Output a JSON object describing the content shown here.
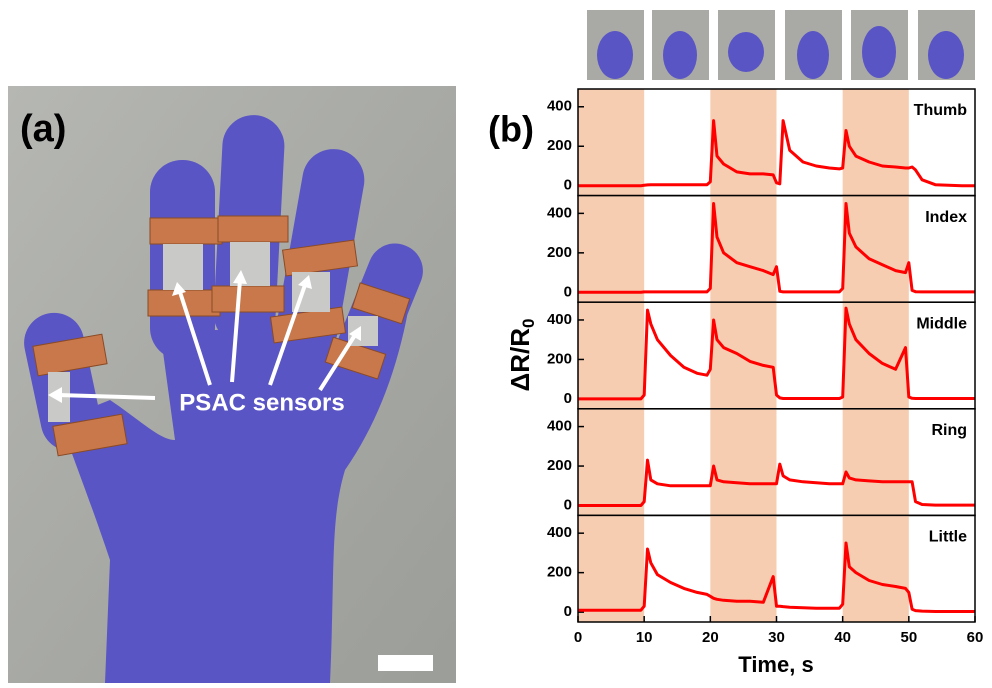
{
  "panel_a": {
    "label": "(a)",
    "annotation": "PSAC sensors"
  },
  "panel_b": {
    "label": "(b)"
  },
  "shared": {
    "xlabel": "Time, s",
    "ylabel": {
      "text": "ΔR/R",
      "subscript": "0"
    },
    "xlim": [
      0,
      60
    ],
    "xticks": [
      0,
      10,
      20,
      30,
      40,
      50,
      60
    ],
    "shaded": [
      [
        0,
        10
      ],
      [
        20,
        30
      ],
      [
        40,
        50
      ]
    ],
    "shade_color": "#f7cdb2"
  },
  "chart_data": [
    {
      "type": "line",
      "title": "Thumb",
      "x": [
        0,
        5,
        9.5,
        10,
        10.5,
        11,
        12,
        14,
        16,
        18,
        19.5,
        20,
        20.5,
        21,
        22,
        24,
        26,
        28,
        29.5,
        30,
        30.5,
        31,
        32,
        34,
        36,
        38,
        39.5,
        40,
        40.5,
        41,
        42,
        44,
        46,
        48,
        49.5,
        50,
        50.5,
        51,
        52,
        54,
        56,
        58,
        60
      ],
      "series": [
        {
          "color": "#ff0000",
          "values": [
            0,
            0,
            0,
            2,
            4,
            5,
            5,
            5,
            5,
            5,
            5,
            20,
            330,
            150,
            110,
            70,
            60,
            60,
            55,
            15,
            10,
            330,
            180,
            120,
            100,
            90,
            85,
            90,
            280,
            200,
            150,
            120,
            100,
            95,
            90,
            90,
            95,
            80,
            30,
            5,
            2,
            0,
            0
          ]
        }
      ],
      "ylim": [
        -50,
        490
      ],
      "yticks": [
        0,
        200,
        400
      ]
    },
    {
      "type": "line",
      "title": "Index",
      "x": [
        0,
        5,
        9.5,
        10,
        10.5,
        11,
        12,
        14,
        16,
        18,
        19.5,
        20,
        20.5,
        21,
        22,
        24,
        26,
        28,
        29.5,
        30,
        30.5,
        31,
        32,
        34,
        36,
        38,
        39.5,
        40,
        40.5,
        41,
        42,
        44,
        46,
        48,
        49.5,
        50,
        50.5,
        51,
        52,
        54,
        56,
        58,
        60
      ],
      "series": [
        {
          "color": "#ff0000",
          "values": [
            0,
            0,
            0,
            2,
            2,
            2,
            2,
            2,
            2,
            2,
            2,
            20,
            450,
            280,
            200,
            150,
            130,
            110,
            90,
            130,
            5,
            2,
            2,
            2,
            2,
            2,
            2,
            20,
            450,
            300,
            230,
            170,
            140,
            110,
            100,
            150,
            10,
            3,
            2,
            2,
            2,
            2,
            2
          ]
        }
      ],
      "ylim": [
        -50,
        490
      ],
      "yticks": [
        0,
        200,
        400
      ]
    },
    {
      "type": "line",
      "title": "Middle",
      "x": [
        0,
        5,
        9.5,
        10,
        10.5,
        11,
        12,
        14,
        16,
        18,
        19.5,
        20,
        20.5,
        21,
        22,
        24,
        26,
        28,
        29.5,
        30,
        30.5,
        31,
        32,
        34,
        36,
        38,
        39.5,
        40,
        40.5,
        41,
        42,
        44,
        46,
        48,
        49.5,
        50,
        50.5,
        51,
        52,
        54,
        56,
        58,
        60
      ],
      "series": [
        {
          "color": "#ff0000",
          "values": [
            0,
            0,
            0,
            20,
            450,
            380,
            300,
            220,
            160,
            130,
            120,
            150,
            400,
            300,
            260,
            230,
            190,
            170,
            160,
            20,
            5,
            2,
            2,
            2,
            2,
            2,
            2,
            10,
            460,
            380,
            300,
            230,
            180,
            150,
            260,
            10,
            3,
            2,
            2,
            2,
            2,
            2,
            2
          ]
        }
      ],
      "ylim": [
        -50,
        490
      ],
      "yticks": [
        0,
        200,
        400
      ]
    },
    {
      "type": "line",
      "title": "Ring",
      "x": [
        0,
        5,
        9.5,
        10,
        10.5,
        11,
        12,
        14,
        16,
        18,
        19.5,
        20,
        20.5,
        21,
        22,
        24,
        26,
        28,
        29.5,
        30,
        30.5,
        31,
        32,
        34,
        36,
        38,
        39.5,
        40,
        40.5,
        41,
        42,
        44,
        46,
        48,
        49.5,
        50,
        50.5,
        51,
        52,
        54,
        56,
        58,
        60
      ],
      "series": [
        {
          "color": "#ff0000",
          "values": [
            0,
            0,
            0,
            20,
            230,
            130,
            110,
            100,
            100,
            100,
            100,
            100,
            200,
            130,
            120,
            115,
            110,
            110,
            110,
            110,
            210,
            150,
            130,
            120,
            115,
            110,
            110,
            110,
            170,
            140,
            130,
            125,
            120,
            120,
            120,
            120,
            120,
            20,
            5,
            2,
            2,
            2,
            2
          ]
        }
      ],
      "ylim": [
        -50,
        490
      ],
      "yticks": [
        0,
        200,
        400
      ]
    },
    {
      "type": "line",
      "title": "Little",
      "x": [
        0,
        5,
        9.5,
        10,
        10.5,
        11,
        12,
        14,
        16,
        18,
        19.5,
        20,
        20.5,
        21,
        22,
        24,
        26,
        28,
        29.5,
        30,
        30.5,
        31,
        32,
        34,
        36,
        38,
        39.5,
        40,
        40.5,
        41,
        42,
        44,
        46,
        48,
        49.5,
        50,
        50.5,
        51,
        52,
        54,
        56,
        58,
        60
      ],
      "series": [
        {
          "color": "#ff0000",
          "values": [
            10,
            10,
            10,
            30,
            320,
            250,
            190,
            150,
            120,
            100,
            90,
            80,
            70,
            65,
            60,
            55,
            55,
            50,
            180,
            30,
            30,
            28,
            25,
            22,
            20,
            20,
            20,
            40,
            350,
            230,
            200,
            160,
            140,
            130,
            120,
            100,
            15,
            8,
            5,
            3,
            3,
            3,
            3
          ]
        }
      ],
      "ylim": [
        -50,
        490
      ],
      "yticks": [
        0,
        200,
        400
      ]
    }
  ]
}
